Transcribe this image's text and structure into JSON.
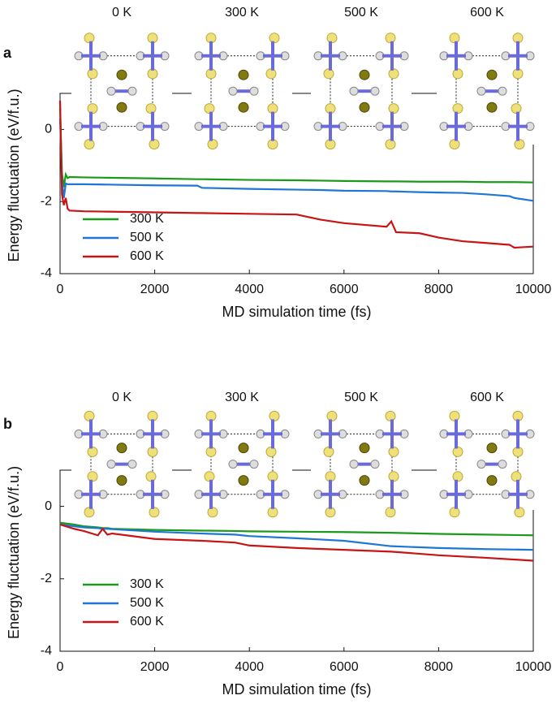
{
  "chart_data": [
    {
      "type": "line",
      "panel_label": "a",
      "annotations": [
        "0 K",
        "300 K",
        "500 K",
        "600 K"
      ],
      "x_label": "MD simulation time (fs)",
      "y_label": "Energy fluctuation (eV/f.u.)",
      "x": [
        0,
        40,
        80,
        120,
        160,
        200,
        500,
        1000,
        2000,
        2900,
        3000,
        4000,
        5000,
        5500,
        6000,
        6900,
        7000,
        7100,
        7600,
        8000,
        8500,
        9000,
        9500,
        9600,
        10000
      ],
      "series": [
        {
          "name": "300 K",
          "color": "#1a9a1a",
          "values": [
            0.6,
            -1.2,
            -1.6,
            -1.25,
            -1.35,
            -1.32,
            -1.33,
            -1.34,
            -1.36,
            -1.38,
            -1.38,
            -1.4,
            -1.41,
            -1.42,
            -1.43,
            -1.44,
            -1.44,
            -1.44,
            -1.45,
            -1.45,
            -1.45,
            -1.46,
            -1.46,
            -1.46,
            -1.47
          ]
        },
        {
          "name": "500 K",
          "color": "#1f77d4",
          "values": [
            0.3,
            -1.4,
            -1.9,
            -1.5,
            -1.52,
            -1.52,
            -1.52,
            -1.53,
            -1.55,
            -1.56,
            -1.62,
            -1.65,
            -1.67,
            -1.68,
            -1.7,
            -1.71,
            -1.72,
            -1.72,
            -1.74,
            -1.75,
            -1.76,
            -1.8,
            -1.85,
            -1.9,
            -1.98
          ]
        },
        {
          "name": "600 K",
          "color": "#c81414",
          "values": [
            0.8,
            -1.8,
            -2.1,
            -1.9,
            -2.2,
            -2.25,
            -2.27,
            -2.28,
            -2.3,
            -2.32,
            -2.32,
            -2.34,
            -2.36,
            -2.5,
            -2.6,
            -2.7,
            -2.55,
            -2.85,
            -2.88,
            -3.0,
            -3.1,
            -3.15,
            -3.2,
            -3.28,
            -3.25
          ]
        }
      ],
      "xlim": [
        0,
        10000
      ],
      "xticks": [
        0,
        2000,
        4000,
        6000,
        8000,
        10000
      ],
      "ylim": [
        -4,
        1
      ],
      "yticks": [
        -4,
        -2,
        0
      ],
      "legend": "lower-left"
    },
    {
      "type": "line",
      "panel_label": "b",
      "annotations": [
        "0 K",
        "300 K",
        "500 K",
        "600 K"
      ],
      "x_label": "MD simulation time (fs)",
      "y_label": "Energy fluctuation (eV/f.u.)",
      "x": [
        0,
        300,
        500,
        800,
        900,
        1000,
        1100,
        2000,
        3000,
        3700,
        4000,
        5000,
        6000,
        7000,
        8000,
        9000,
        10000
      ],
      "series": [
        {
          "name": "300 K",
          "color": "#1a9a1a",
          "values": [
            -0.45,
            -0.5,
            -0.55,
            -0.58,
            -0.6,
            -0.6,
            -0.62,
            -0.65,
            -0.67,
            -0.68,
            -0.69,
            -0.7,
            -0.71,
            -0.73,
            -0.76,
            -0.78,
            -0.8
          ]
        },
        {
          "name": "500 K",
          "color": "#1f77d4",
          "values": [
            -0.5,
            -0.55,
            -0.58,
            -0.6,
            -0.62,
            -0.62,
            -0.63,
            -0.7,
            -0.75,
            -0.78,
            -0.82,
            -0.88,
            -0.95,
            -1.1,
            -1.15,
            -1.18,
            -1.2
          ]
        },
        {
          "name": "600 K",
          "color": "#c81414",
          "values": [
            -0.5,
            -0.62,
            -0.68,
            -0.8,
            -0.62,
            -0.78,
            -0.75,
            -0.9,
            -0.95,
            -1.0,
            -1.08,
            -1.15,
            -1.2,
            -1.25,
            -1.35,
            -1.42,
            -1.5
          ]
        }
      ],
      "xlim": [
        0,
        10000
      ],
      "xticks": [
        0,
        2000,
        4000,
        6000,
        8000,
        10000
      ],
      "ylim": [
        -4,
        1
      ],
      "yticks": [
        -4,
        -2,
        0
      ],
      "legend": "lower-left"
    }
  ]
}
